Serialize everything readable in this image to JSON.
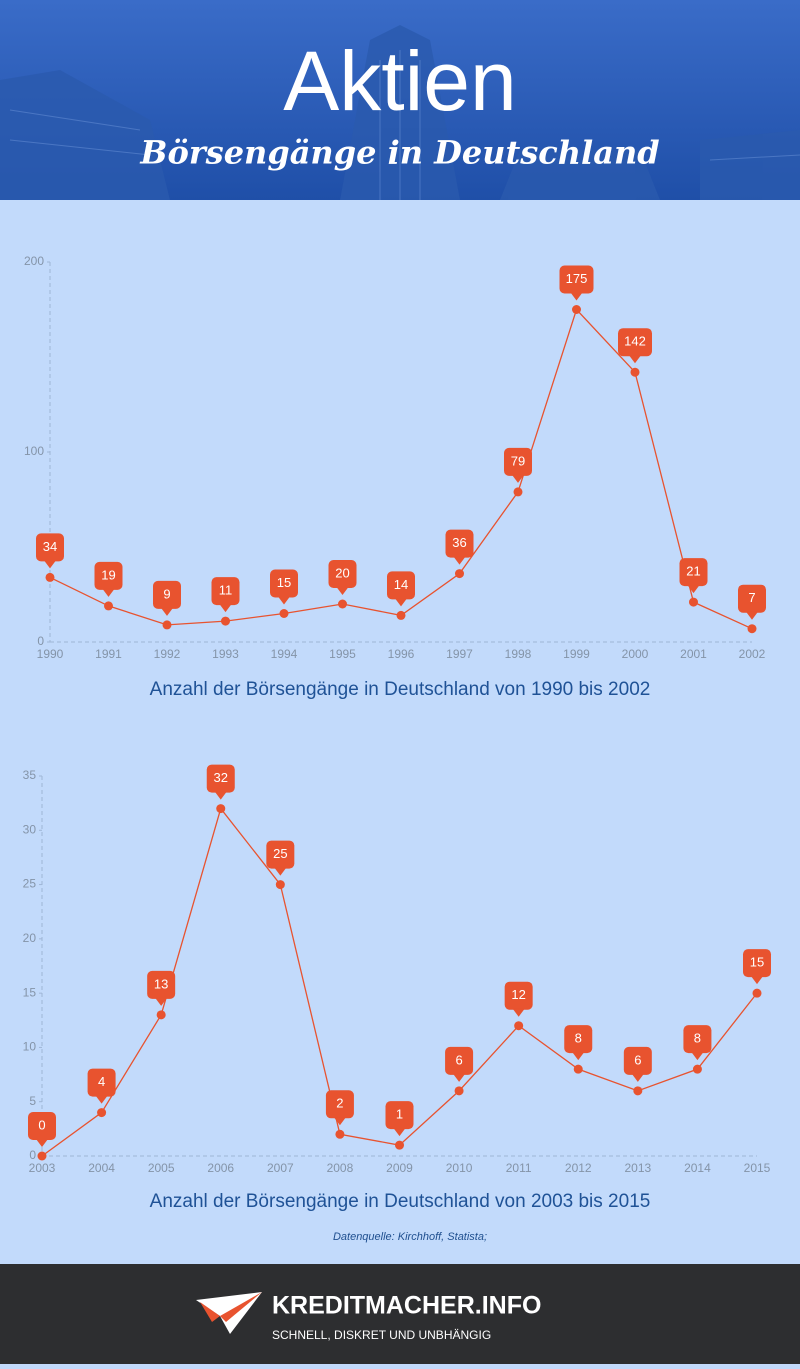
{
  "header": {
    "title": "Aktien",
    "subtitle": "Börsengänge in Deutschland"
  },
  "chart_data": [
    {
      "type": "line",
      "title": "Anzahl der Börsengänge in Deutschland von 1990 bis 2002",
      "categories": [
        "1990",
        "1991",
        "1992",
        "1993",
        "1994",
        "1995",
        "1996",
        "1997",
        "1998",
        "1999",
        "2000",
        "2001",
        "2002"
      ],
      "values": [
        34,
        19,
        9,
        11,
        15,
        20,
        14,
        36,
        79,
        175,
        142,
        21,
        7
      ],
      "color": "#e8532f",
      "ylim": [
        0,
        200
      ],
      "yticks": [
        0,
        100,
        200
      ]
    },
    {
      "type": "line",
      "title": "Anzahl der Börsengänge in Deutschland von 2003 bis 2015",
      "categories": [
        "2003",
        "2004",
        "2005",
        "2006",
        "2007",
        "2008",
        "2009",
        "2010",
        "2011",
        "2012",
        "2013",
        "2014",
        "2015"
      ],
      "values": [
        0,
        4,
        13,
        32,
        25,
        2,
        1,
        6,
        12,
        8,
        6,
        8,
        15
      ],
      "color": "#e8532f",
      "ylim": [
        0,
        35
      ],
      "yticks": [
        0,
        5,
        10,
        15,
        20,
        25,
        30,
        35
      ]
    }
  ],
  "source": "Datenquelle: Kirchhoff, Statista;",
  "footer": {
    "brand": "KREDITMACHER.INFO",
    "tagline": "SCHNELL, DISKRET UND UNBHÄNGIG"
  }
}
